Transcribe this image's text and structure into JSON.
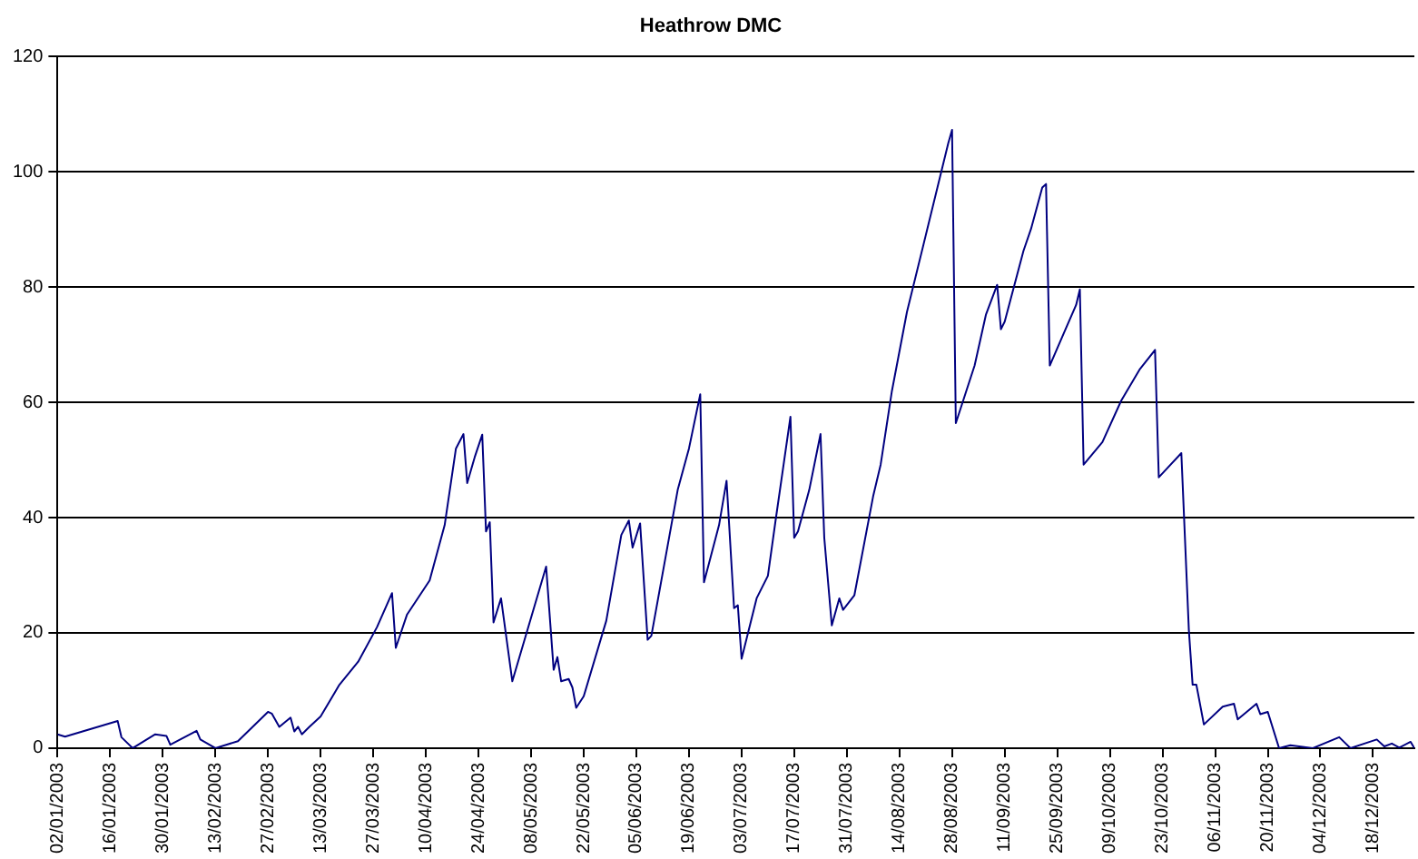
{
  "chart_data": {
    "type": "line",
    "title": "Heathrow DMC",
    "color": "#000080",
    "grid": "y",
    "x": [
      "2003-01-02",
      "2003-01-04",
      "2003-01-18",
      "2003-01-19",
      "2003-01-22",
      "2003-01-28",
      "2003-01-31",
      "2003-02-01",
      "2003-02-08",
      "2003-02-09",
      "2003-02-13",
      "2003-02-19",
      "2003-02-27",
      "2003-02-28",
      "2003-03-02",
      "2003-03-05",
      "2003-03-06",
      "2003-03-07",
      "2003-03-08",
      "2003-03-10",
      "2003-03-13",
      "2003-03-18",
      "2003-03-23",
      "2003-03-28",
      "2003-04-01",
      "2003-04-02",
      "2003-04-05",
      "2003-04-11",
      "2003-04-15",
      "2003-04-18",
      "2003-04-20",
      "2003-04-21",
      "2003-04-23",
      "2003-04-25",
      "2003-04-26",
      "2003-04-27",
      "2003-04-28",
      "2003-04-30",
      "2003-05-03",
      "2003-05-12",
      "2003-05-14",
      "2003-05-15",
      "2003-05-16",
      "2003-05-18",
      "2003-05-19",
      "2003-05-20",
      "2003-05-22",
      "2003-05-28",
      "2003-06-01",
      "2003-06-03",
      "2003-06-04",
      "2003-06-06",
      "2003-06-08",
      "2003-06-09",
      "2003-06-16",
      "2003-06-19",
      "2003-06-22",
      "2003-06-23",
      "2003-06-27",
      "2003-06-29",
      "2003-07-01",
      "2003-07-02",
      "2003-07-03",
      "2003-07-07",
      "2003-07-10",
      "2003-07-12",
      "2003-07-16",
      "2003-07-17",
      "2003-07-18",
      "2003-07-21",
      "2003-07-24",
      "2003-07-25",
      "2003-07-27",
      "2003-07-29",
      "2003-07-30",
      "2003-08-02",
      "2003-08-07",
      "2003-08-09",
      "2003-08-12",
      "2003-08-16",
      "2003-08-21",
      "2003-08-27",
      "2003-08-28",
      "2003-08-29",
      "2003-09-03",
      "2003-09-06",
      "2003-09-09",
      "2003-09-10",
      "2003-09-11",
      "2003-09-16",
      "2003-09-18",
      "2003-09-21",
      "2003-09-22",
      "2003-09-23",
      "2003-09-27",
      "2003-09-30",
      "2003-10-01",
      "2003-10-02",
      "2003-10-07",
      "2003-10-12",
      "2003-10-17",
      "2003-10-21",
      "2003-10-22",
      "2003-10-28",
      "2003-10-30",
      "2003-10-31",
      "2003-11-01",
      "2003-11-03",
      "2003-11-08",
      "2003-11-11",
      "2003-11-12",
      "2003-11-17",
      "2003-11-18",
      "2003-11-20",
      "2003-11-23",
      "2003-11-26",
      "2003-12-02",
      "2003-12-09",
      "2003-12-12",
      "2003-12-19",
      "2003-12-21",
      "2003-12-23",
      "2003-12-25",
      "2003-12-28",
      "2003-12-29"
    ],
    "values": [
      2.4,
      2.0,
      4.7,
      1.9,
      0,
      2.4,
      2.1,
      0.6,
      3.0,
      1.5,
      0,
      1.2,
      6.3,
      6.0,
      3.7,
      5.3,
      2.9,
      3.7,
      2.4,
      3.7,
      5.5,
      11,
      15,
      21,
      26.9,
      17.4,
      23.2,
      29.1,
      38.7,
      52,
      54.5,
      46,
      50.5,
      54.4,
      37.6,
      39.2,
      21.8,
      26,
      11.6,
      31.5,
      13.6,
      15.8,
      11.6,
      12,
      10.5,
      7,
      9,
      22.1,
      37,
      39.5,
      34.8,
      39,
      18.8,
      19.5,
      44.8,
      52,
      61.4,
      28.8,
      38.7,
      46.4,
      24.3,
      24.8,
      15.5,
      26,
      29.9,
      39.3,
      57.5,
      36.5,
      37.6,
      44.8,
      54.5,
      36.5,
      21.3,
      26,
      24,
      26.5,
      43.7,
      49.2,
      62,
      75.7,
      89,
      105,
      107.3,
      56.4,
      66.4,
      75.2,
      80.4,
      72.7,
      74,
      86.3,
      90.1,
      97.3,
      97.9,
      66.4,
      72.4,
      76.9,
      79.6,
      49.2,
      53.1,
      60.3,
      65.8,
      69.1,
      47,
      51.2,
      20.5,
      11,
      11,
      4.1,
      7.2,
      7.7,
      5,
      7.7,
      5.9,
      6.3,
      0,
      0.5,
      0,
      1.9,
      0,
      1.5,
      0.3,
      0.8,
      0.1,
      1.1,
      0
    ],
    "xlim": [
      "2003-01-02",
      "2003-12-29"
    ],
    "xticks": [
      {
        "value": "2003-01-02",
        "label": "02/01/2003"
      },
      {
        "value": "2003-01-16",
        "label": "16/01/2003"
      },
      {
        "value": "2003-01-30",
        "label": "30/01/2003"
      },
      {
        "value": "2003-02-13",
        "label": "13/02/2003"
      },
      {
        "value": "2003-02-27",
        "label": "27/02/2003"
      },
      {
        "value": "2003-03-13",
        "label": "13/03/2003"
      },
      {
        "value": "2003-03-27",
        "label": "27/03/2003"
      },
      {
        "value": "2003-04-10",
        "label": "10/04/2003"
      },
      {
        "value": "2003-04-24",
        "label": "24/04/2003"
      },
      {
        "value": "2003-05-08",
        "label": "08/05/2003"
      },
      {
        "value": "2003-05-22",
        "label": "22/05/2003"
      },
      {
        "value": "2003-06-05",
        "label": "05/06/2003"
      },
      {
        "value": "2003-06-19",
        "label": "19/06/2003"
      },
      {
        "value": "2003-07-03",
        "label": "03/07/2003"
      },
      {
        "value": "2003-07-17",
        "label": "17/07/2003"
      },
      {
        "value": "2003-07-31",
        "label": "31/07/2003"
      },
      {
        "value": "2003-08-14",
        "label": "14/08/2003"
      },
      {
        "value": "2003-08-28",
        "label": "28/08/2003"
      },
      {
        "value": "2003-09-11",
        "label": "11/09/2003"
      },
      {
        "value": "2003-09-25",
        "label": "25/09/2003"
      },
      {
        "value": "2003-10-09",
        "label": "09/10/2003"
      },
      {
        "value": "2003-10-23",
        "label": "23/10/2003"
      },
      {
        "value": "2003-11-06",
        "label": "06/11/2003"
      },
      {
        "value": "2003-11-20",
        "label": "20/11/2003"
      },
      {
        "value": "2003-12-04",
        "label": "04/12/2003"
      },
      {
        "value": "2003-12-18",
        "label": "18/12/2003"
      }
    ],
    "ylim": [
      0,
      120
    ],
    "yticks": [
      0,
      20,
      40,
      60,
      80,
      100,
      120
    ]
  }
}
